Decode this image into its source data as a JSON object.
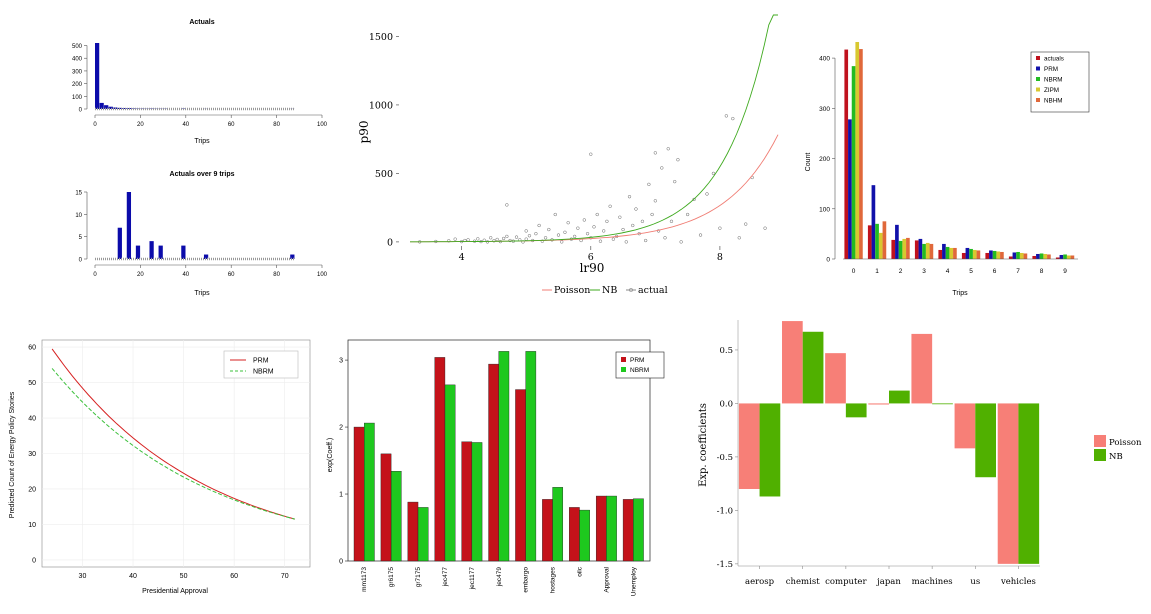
{
  "chart_data": [
    {
      "id": "actuals_hist",
      "type": "bar",
      "title": "Actuals",
      "xlabel": "Trips",
      "ylabel": "",
      "xlim": [
        0,
        100
      ],
      "ylim": [
        0,
        520
      ],
      "xticks": [
        0,
        20,
        40,
        60,
        80,
        100
      ],
      "yticks": [
        0,
        100,
        200,
        300,
        400,
        500
      ],
      "color": "#0b0baa",
      "bins": [
        {
          "x": 0,
          "v": 520
        },
        {
          "x": 2,
          "v": 48
        },
        {
          "x": 4,
          "v": 30
        },
        {
          "x": 6,
          "v": 18
        },
        {
          "x": 8,
          "v": 12
        },
        {
          "x": 10,
          "v": 9
        },
        {
          "x": 12,
          "v": 8
        },
        {
          "x": 14,
          "v": 7
        },
        {
          "x": 16,
          "v": 4
        },
        {
          "x": 18,
          "v": 3
        },
        {
          "x": 20,
          "v": 3
        },
        {
          "x": 22,
          "v": 2
        },
        {
          "x": 24,
          "v": 3
        },
        {
          "x": 26,
          "v": 2
        },
        {
          "x": 28,
          "v": 2
        },
        {
          "x": 30,
          "v": 2
        },
        {
          "x": 38,
          "v": 3
        },
        {
          "x": 48,
          "v": 1
        },
        {
          "x": 86,
          "v": 1
        }
      ],
      "bin_width": 2,
      "rug_range": [
        0,
        88
      ]
    },
    {
      "id": "over9_hist",
      "type": "bar",
      "title": "Actuals over 9 trips",
      "xlabel": "Trips",
      "ylabel": "",
      "xlim": [
        0,
        100
      ],
      "ylim": [
        0,
        15
      ],
      "xticks": [
        0,
        20,
        40,
        60,
        80,
        100
      ],
      "yticks": [
        0,
        5,
        10,
        15
      ],
      "color": "#0b0baa",
      "bins": [
        {
          "x": 10,
          "v": 7
        },
        {
          "x": 14,
          "v": 15
        },
        {
          "x": 18,
          "v": 3
        },
        {
          "x": 24,
          "v": 4
        },
        {
          "x": 28,
          "v": 3
        },
        {
          "x": 38,
          "v": 3
        },
        {
          "x": 48,
          "v": 1
        },
        {
          "x": 86,
          "v": 1
        }
      ],
      "bin_width": 2,
      "rug_range": [
        0,
        88
      ]
    },
    {
      "id": "scatter_fit",
      "type": "line",
      "title": "",
      "xlabel": "lr90",
      "ylabel": "p90",
      "xlim": [
        3.2,
        8.9
      ],
      "ylim": [
        -30,
        1620
      ],
      "xticks": [
        4,
        6,
        8
      ],
      "yticks": [
        0,
        500,
        1000,
        1500
      ],
      "legend": [
        "Poisson",
        "NB",
        "actual"
      ],
      "legend_position": "bottom",
      "series": [
        {
          "name": "Poisson",
          "color": "#f07d74",
          "a": 0.018,
          "b": 1.2,
          "x_range": [
            3.2,
            8.9
          ]
        },
        {
          "name": "NB",
          "color": "#3faa1f",
          "a": 0.0075,
          "b": 1.4,
          "x_range": [
            3.2,
            8.9
          ]
        }
      ],
      "points": [
        [
          3.35,
          0
        ],
        [
          3.6,
          3
        ],
        [
          3.8,
          8
        ],
        [
          3.9,
          20
        ],
        [
          4.0,
          2
        ],
        [
          4.05,
          10
        ],
        [
          4.1,
          15
        ],
        [
          4.2,
          5
        ],
        [
          4.25,
          22
        ],
        [
          4.3,
          2
        ],
        [
          4.35,
          12
        ],
        [
          4.4,
          0
        ],
        [
          4.45,
          30
        ],
        [
          4.5,
          8
        ],
        [
          4.55,
          18
        ],
        [
          4.6,
          2
        ],
        [
          4.65,
          25
        ],
        [
          4.7,
          40
        ],
        [
          4.7,
          270
        ],
        [
          4.75,
          10
        ],
        [
          4.8,
          5
        ],
        [
          4.85,
          35
        ],
        [
          4.9,
          15
        ],
        [
          4.95,
          0
        ],
        [
          5.0,
          80
        ],
        [
          5.0,
          20
        ],
        [
          5.05,
          45
        ],
        [
          5.1,
          10
        ],
        [
          5.15,
          60
        ],
        [
          5.2,
          120
        ],
        [
          5.25,
          5
        ],
        [
          5.3,
          30
        ],
        [
          5.35,
          90
        ],
        [
          5.4,
          15
        ],
        [
          5.45,
          200
        ],
        [
          5.5,
          50
        ],
        [
          5.55,
          0
        ],
        [
          5.6,
          70
        ],
        [
          5.65,
          140
        ],
        [
          5.7,
          20
        ],
        [
          5.75,
          40
        ],
        [
          5.8,
          100
        ],
        [
          5.85,
          10
        ],
        [
          5.9,
          160
        ],
        [
          5.95,
          60
        ],
        [
          6.0,
          30
        ],
        [
          6.0,
          640
        ],
        [
          6.05,
          110
        ],
        [
          6.1,
          200
        ],
        [
          6.15,
          5
        ],
        [
          6.2,
          80
        ],
        [
          6.25,
          150
        ],
        [
          6.3,
          260
        ],
        [
          6.35,
          20
        ],
        [
          6.4,
          40
        ],
        [
          6.45,
          180
        ],
        [
          6.5,
          90
        ],
        [
          6.55,
          0
        ],
        [
          6.6,
          330
        ],
        [
          6.65,
          120
        ],
        [
          6.7,
          240
        ],
        [
          6.75,
          60
        ],
        [
          6.8,
          150
        ],
        [
          6.85,
          10
        ],
        [
          6.9,
          420
        ],
        [
          6.95,
          200
        ],
        [
          7.0,
          300
        ],
        [
          7.0,
          650
        ],
        [
          7.05,
          80
        ],
        [
          7.1,
          540
        ],
        [
          7.15,
          30
        ],
        [
          7.2,
          680
        ],
        [
          7.25,
          150
        ],
        [
          7.3,
          440
        ],
        [
          7.35,
          600
        ],
        [
          7.4,
          0
        ],
        [
          7.5,
          200
        ],
        [
          7.6,
          310
        ],
        [
          7.7,
          50
        ],
        [
          7.8,
          350
        ],
        [
          7.9,
          500
        ],
        [
          8.0,
          100
        ],
        [
          8.1,
          920
        ],
        [
          8.2,
          900
        ],
        [
          8.3,
          30
        ],
        [
          8.4,
          130
        ],
        [
          8.5,
          470
        ],
        [
          8.7,
          100
        ]
      ]
    },
    {
      "id": "model_counts",
      "type": "bar",
      "title": "",
      "xlabel": "Trips",
      "ylabel": "Count",
      "categories": [
        "0",
        "1",
        "2",
        "3",
        "4",
        "5",
        "6",
        "7",
        "8",
        "9"
      ],
      "ylim": [
        0,
        440
      ],
      "yticks": [
        0,
        100,
        200,
        300,
        400
      ],
      "legend_position": "top-right",
      "series": [
        {
          "name": "actuals",
          "color": "#c0121e",
          "values": [
            417,
            67,
            38,
            37,
            18,
            12,
            12,
            5,
            6,
            3
          ]
        },
        {
          "name": "PRM",
          "color": "#1111aa",
          "values": [
            278,
            147,
            68,
            40,
            30,
            22,
            17,
            13,
            10,
            8
          ]
        },
        {
          "name": "NBRM",
          "color": "#22bb22",
          "values": [
            384,
            70,
            36,
            30,
            24,
            20,
            16,
            14,
            11,
            9
          ]
        },
        {
          "name": "ZIPM",
          "color": "#d8c830",
          "values": [
            432,
            52,
            40,
            32,
            22,
            18,
            15,
            12,
            10,
            7
          ]
        },
        {
          "name": "NBHM",
          "color": "#e0683a",
          "values": [
            418,
            75,
            42,
            30,
            22,
            17,
            14,
            11,
            9,
            7
          ]
        }
      ]
    },
    {
      "id": "approval_curves",
      "type": "line",
      "title": "",
      "xlabel": "Presidential Approval",
      "ylabel": "Predicted Count of Energy Policy Stories",
      "xlim": [
        22,
        75
      ],
      "ylim": [
        -2,
        62
      ],
      "xticks": [
        30,
        40,
        50,
        60,
        70
      ],
      "yticks": [
        0,
        10,
        20,
        30,
        40,
        50,
        60
      ],
      "legend_position": "top-right",
      "series": [
        {
          "name": "PRM",
          "color": "#d62020",
          "dash": false,
          "x": [
            24,
            72
          ],
          "y": [
            59.5,
            11.5
          ]
        },
        {
          "name": "NBRM",
          "color": "#3cc03c",
          "dash": true,
          "x": [
            24,
            72
          ],
          "y": [
            54,
            11.5
          ]
        }
      ]
    },
    {
      "id": "exp_coef_bar",
      "type": "bar",
      "title": "",
      "xlabel": "",
      "ylabel": "exp(Coeff.)",
      "categories": [
        "mm1173",
        "gr6175",
        "gr7175",
        "jec477",
        "jec1177",
        "jec479",
        "embargo",
        "hostages",
        "oilc",
        "Approval",
        "Unemploy"
      ],
      "ylim": [
        0,
        3.3
      ],
      "yticks": [
        0,
        1,
        2,
        3
      ],
      "legend_position": "top-right",
      "series": [
        {
          "name": "PRM",
          "color": "#c4121a",
          "values": [
            2.0,
            1.6,
            0.88,
            3.04,
            1.78,
            2.94,
            2.56,
            0.92,
            0.8,
            0.97,
            0.92
          ]
        },
        {
          "name": "NBRM",
          "color": "#1ec81e",
          "values": [
            2.06,
            1.34,
            0.8,
            2.63,
            1.77,
            3.13,
            3.13,
            1.1,
            0.76,
            0.97,
            0.93
          ]
        }
      ]
    },
    {
      "id": "coef_diverging",
      "type": "bar",
      "title": "",
      "xlabel": "",
      "ylabel": "Exp. coefficients",
      "categories": [
        "aerosp",
        "chemist",
        "computer",
        "japan",
        "machines",
        "us",
        "vehicles"
      ],
      "ylim": [
        -1.52,
        0.78
      ],
      "yticks": [
        0.5,
        0.0,
        -0.5,
        -1.0,
        -1.5
      ],
      "ytick_labels": [
        "0.5",
        "0.0",
        "-0.5",
        "-1.0",
        "-1.5"
      ],
      "legend_position": "right",
      "series": [
        {
          "name": "Poisson",
          "color": "#f77f77",
          "values": [
            -0.8,
            0.77,
            0.47,
            -0.01,
            0.65,
            -0.42,
            -1.5
          ]
        },
        {
          "name": "NB",
          "color": "#50b000",
          "values": [
            -0.87,
            0.67,
            -0.13,
            0.12,
            0.0,
            -0.69,
            -1.5
          ]
        }
      ]
    }
  ]
}
